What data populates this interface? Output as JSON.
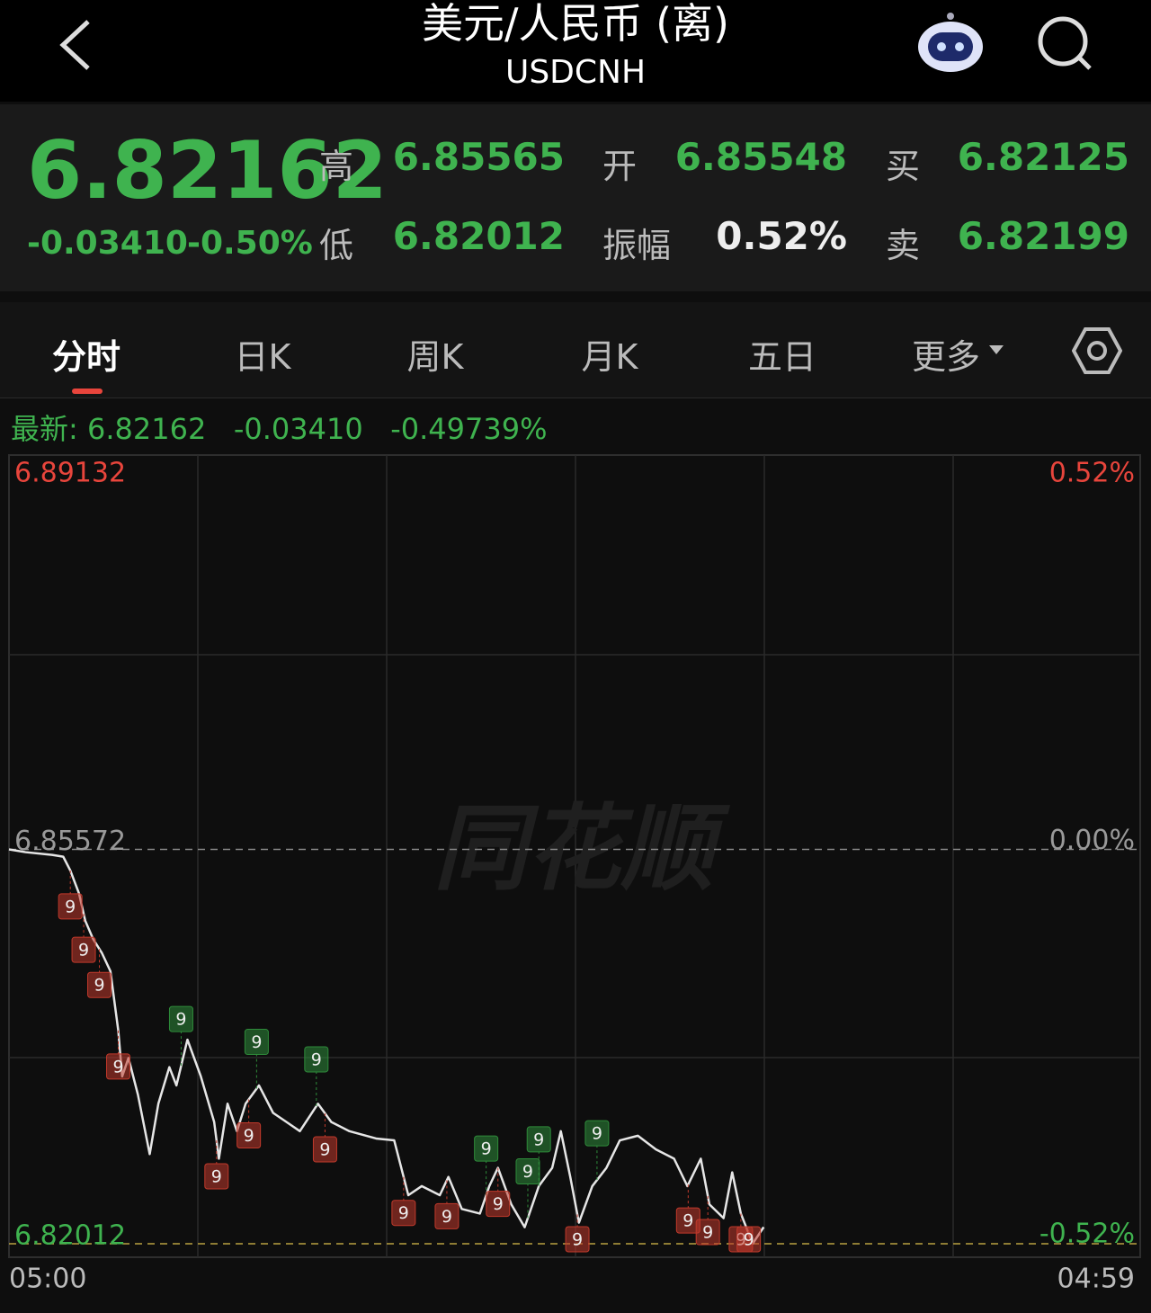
{
  "header": {
    "title": "美元/人民币 (离)",
    "subtitle": "USDCNH"
  },
  "quote": {
    "price": "6.82162",
    "change": "-0.03410",
    "change_pct": "-0.50%",
    "stats": [
      {
        "label": "高",
        "value": "6.85565"
      },
      {
        "label": "开",
        "value": "6.85548"
      },
      {
        "label": "买",
        "value": "6.82125"
      },
      {
        "label": "低",
        "value": "6.82012"
      },
      {
        "label": "振幅",
        "value": "0.52%"
      },
      {
        "label": "卖",
        "value": "6.82199"
      }
    ]
  },
  "tabs": [
    "分时",
    "日K",
    "周K",
    "月K",
    "五日",
    "更多"
  ],
  "latest": {
    "label": "最新:",
    "price": "6.82162",
    "change": "-0.03410",
    "change_pct": "-0.49739%"
  },
  "chart_data": {
    "type": "line",
    "watermark": "同花顺",
    "color": "#e6e6e6",
    "x": [
      0,
      21,
      55,
      69,
      78,
      89,
      97,
      107,
      118,
      129,
      139,
      144,
      152,
      164,
      179,
      190,
      204,
      213,
      227,
      244,
      261,
      267,
      278,
      290,
      301,
      318,
      336,
      353,
      370,
      393,
      410,
      433,
      467,
      490,
      508,
      525,
      548,
      559,
      576,
      599,
      611,
      622,
      639,
      656,
      674,
      691,
      702,
      714,
      725,
      742,
      760,
      777,
      800,
      823,
      846,
      863,
      880,
      891,
      909,
      920,
      931,
      946,
      960
    ],
    "values": [
      6.85572,
      6.85547,
      6.85522,
      6.85506,
      6.85382,
      6.85176,
      6.84928,
      6.84763,
      6.84639,
      6.84473,
      6.83937,
      6.83523,
      6.83689,
      6.83358,
      6.82821,
      6.83276,
      6.83606,
      6.83441,
      6.83854,
      6.83523,
      6.83111,
      6.8278,
      6.83276,
      6.83028,
      6.83276,
      6.83441,
      6.83193,
      6.83111,
      6.83028,
      6.83276,
      6.83111,
      6.83028,
      6.82962,
      6.82945,
      6.8245,
      6.82532,
      6.8245,
      6.82615,
      6.82326,
      6.82284,
      6.82532,
      6.82697,
      6.82367,
      6.82161,
      6.82532,
      6.82697,
      6.83028,
      6.82615,
      6.82202,
      6.82532,
      6.82697,
      6.82945,
      6.82987,
      6.82863,
      6.8278,
      6.82532,
      6.8278,
      6.82367,
      6.82243,
      6.82656,
      6.82284,
      6.82012,
      6.82162
    ],
    "xlim": [
      0,
      1439
    ],
    "xticks": [
      {
        "value": 0,
        "label": "05:00"
      },
      {
        "value": 1439,
        "label": "04:59"
      }
    ],
    "ylim": [
      6.8189,
      6.89132
    ],
    "yticks": [
      6.89132,
      6.85572,
      6.82012
    ],
    "y2lim": [
      -0.54,
      0.52
    ],
    "y2ticks": [
      {
        "value": 0.52,
        "label": "0.52%"
      },
      {
        "value": 0,
        "label": "0.00%"
      },
      {
        "value": -0.52,
        "label": "-0.52%"
      }
    ],
    "signals": [
      {
        "x": 78,
        "label": "9",
        "color": "#c0392b"
      },
      {
        "x": 95,
        "label": "9",
        "color": "#c0392b"
      },
      {
        "x": 115,
        "label": "9",
        "color": "#c0392b"
      },
      {
        "x": 139,
        "label": "9",
        "color": "#c0392b"
      },
      {
        "x": 219,
        "label": "9",
        "color": "#2e8b3a"
      },
      {
        "x": 264,
        "label": "9",
        "color": "#c0392b"
      },
      {
        "x": 305,
        "label": "9",
        "color": "#c0392b"
      },
      {
        "x": 315,
        "label": "9",
        "color": "#2e8b3a"
      },
      {
        "x": 391,
        "label": "9",
        "color": "#2e8b3a"
      },
      {
        "x": 402,
        "label": "9",
        "color": "#c0392b"
      },
      {
        "x": 502,
        "label": "9",
        "color": "#c0392b"
      },
      {
        "x": 557,
        "label": "9",
        "color": "#c0392b"
      },
      {
        "x": 607,
        "label": "9",
        "color": "#2e8b3a"
      },
      {
        "x": 622,
        "label": "9",
        "color": "#c0392b"
      },
      {
        "x": 660,
        "label": "9",
        "color": "#2e8b3a"
      },
      {
        "x": 674,
        "label": "9",
        "color": "#2e8b3a"
      },
      {
        "x": 723,
        "label": "9",
        "color": "#c0392b"
      },
      {
        "x": 748,
        "label": "9",
        "color": "#2e8b3a"
      },
      {
        "x": 864,
        "label": "9",
        "color": "#c0392b"
      },
      {
        "x": 889,
        "label": "9",
        "color": "#c0392b"
      },
      {
        "x": 931,
        "label": "9",
        "color": "#c0392b"
      },
      {
        "x": 941,
        "label": "9",
        "color": "#c0392b"
      }
    ]
  }
}
